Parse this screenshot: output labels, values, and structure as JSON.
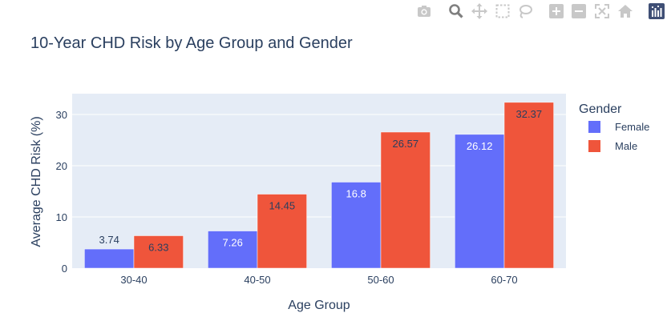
{
  "toolbar": {
    "buttons": [
      {
        "name": "camera-icon",
        "title": "Download plot as a png"
      },
      {
        "name": "zoom-icon",
        "title": "Zoom"
      },
      {
        "name": "pan-icon",
        "title": "Pan"
      },
      {
        "name": "box-select-icon",
        "title": "Box Select"
      },
      {
        "name": "lasso-select-icon",
        "title": "Lasso Select"
      },
      {
        "name": "zoom-in-icon",
        "title": "Zoom in"
      },
      {
        "name": "zoom-out-icon",
        "title": "Zoom out"
      },
      {
        "name": "autoscale-icon",
        "title": "Autoscale"
      },
      {
        "name": "reset-axes-icon",
        "title": "Reset axes"
      },
      {
        "name": "plotly-logo-icon",
        "title": "Produced with Plotly"
      }
    ]
  },
  "chart_data": {
    "type": "bar",
    "title": "10-Year CHD Risk by Age Group and Gender",
    "xlabel": "Age Group",
    "ylabel": "Average CHD Risk (%)",
    "categories": [
      "30-40",
      "40-50",
      "50-60",
      "60-70"
    ],
    "series": [
      {
        "name": "Female",
        "values": [
          3.74,
          7.26,
          16.8,
          26.12
        ],
        "color": "#636efa"
      },
      {
        "name": "Male",
        "values": [
          6.33,
          14.45,
          26.57,
          32.37
        ],
        "color": "#ef553b"
      }
    ],
    "ylim": [
      0,
      34.07
    ],
    "yticks": [
      0,
      10,
      20,
      30
    ],
    "legend_title": "Gender",
    "legend_position": "right",
    "grid": true,
    "colors": {
      "plot_bg": "#e5ecf6",
      "grid": "#ffffff",
      "text": "#2a3f5f",
      "modebar": "#c8c8c8"
    }
  }
}
